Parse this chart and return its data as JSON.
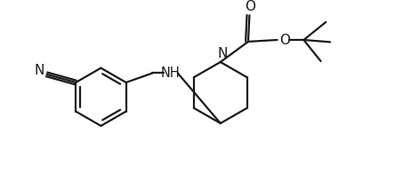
{
  "background_color": "#ffffff",
  "line_color": "#1a1a1a",
  "line_width": 1.6,
  "font_size": 10,
  "figsize": [
    4.62,
    1.94
  ],
  "dpi": 100,
  "xlim": [
    0,
    9.0
  ],
  "ylim": [
    0,
    3.8
  ]
}
